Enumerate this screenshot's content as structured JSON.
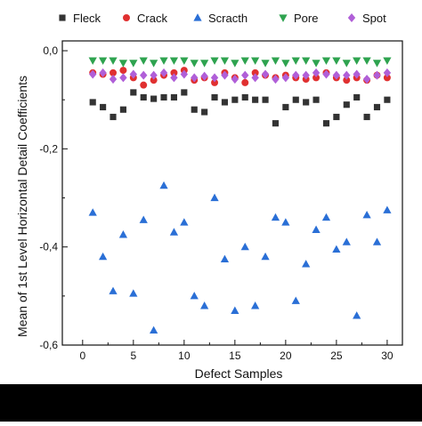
{
  "chart_data": {
    "type": "scatter",
    "xlabel": "Defect Samples",
    "ylabel": "Mean of 1st Level Horizontal Detail Coefficients",
    "xlim": [
      -2,
      31.5
    ],
    "ylim": [
      -0.6,
      0.02
    ],
    "x_ticks": [
      0,
      5,
      10,
      15,
      20,
      25,
      30
    ],
    "x_tick_labels": [
      "0",
      "5",
      "10",
      "15",
      "20",
      "25",
      "30"
    ],
    "y_ticks": [
      0.0,
      -0.2,
      -0.4,
      -0.6
    ],
    "y_tick_labels": [
      "0,0",
      "-0,2",
      "-0,4",
      "-0,6"
    ],
    "grid": false,
    "legend_placement": "top",
    "x": [
      1,
      2,
      3,
      4,
      5,
      6,
      7,
      8,
      9,
      10,
      11,
      12,
      13,
      14,
      15,
      16,
      17,
      18,
      19,
      20,
      21,
      22,
      23,
      24,
      25,
      26,
      27,
      28,
      29,
      30
    ],
    "series": [
      {
        "name": "Fleck",
        "marker": "square",
        "color": "#333333",
        "values": [
          -0.105,
          -0.115,
          -0.135,
          -0.12,
          -0.085,
          -0.095,
          -0.098,
          -0.095,
          -0.095,
          -0.085,
          -0.12,
          -0.125,
          -0.095,
          -0.105,
          -0.1,
          -0.095,
          -0.1,
          -0.1,
          -0.148,
          -0.115,
          -0.1,
          -0.105,
          -0.1,
          -0.148,
          -0.135,
          -0.11,
          -0.095,
          -0.135,
          -0.115,
          -0.1
        ]
      },
      {
        "name": "Crack",
        "marker": "circle",
        "color": "#e03030",
        "values": [
          -0.045,
          -0.048,
          -0.045,
          -0.04,
          -0.055,
          -0.07,
          -0.06,
          -0.05,
          -0.045,
          -0.04,
          -0.06,
          -0.055,
          -0.065,
          -0.045,
          -0.055,
          -0.065,
          -0.045,
          -0.05,
          -0.055,
          -0.05,
          -0.055,
          -0.058,
          -0.055,
          -0.045,
          -0.055,
          -0.06,
          -0.055,
          -0.06,
          -0.05,
          -0.055
        ]
      },
      {
        "name": "Scracth",
        "marker": "triangle-up",
        "color": "#2a6fd6",
        "values": [
          -0.33,
          -0.42,
          -0.49,
          -0.375,
          -0.495,
          -0.345,
          -0.57,
          -0.275,
          -0.37,
          -0.35,
          -0.5,
          -0.52,
          -0.3,
          -0.425,
          -0.53,
          -0.4,
          -0.52,
          -0.42,
          -0.34,
          -0.35,
          -0.51,
          -0.435,
          -0.365,
          -0.34,
          -0.405,
          -0.39,
          -0.54,
          -0.335,
          -0.39,
          -0.325
        ]
      },
      {
        "name": "Pore",
        "marker": "triangle-down",
        "color": "#2ea34f",
        "values": [
          -0.02,
          -0.02,
          -0.02,
          -0.025,
          -0.025,
          -0.02,
          -0.025,
          -0.02,
          -0.02,
          -0.02,
          -0.025,
          -0.025,
          -0.02,
          -0.02,
          -0.025,
          -0.02,
          -0.02,
          -0.025,
          -0.02,
          -0.025,
          -0.02,
          -0.02,
          -0.025,
          -0.02,
          -0.02,
          -0.025,
          -0.02,
          -0.02,
          -0.025,
          -0.02
        ]
      },
      {
        "name": "Spot",
        "marker": "diamond",
        "color": "#b05fd8",
        "values": [
          -0.048,
          -0.045,
          -0.058,
          -0.055,
          -0.048,
          -0.05,
          -0.05,
          -0.045,
          -0.055,
          -0.048,
          -0.055,
          -0.052,
          -0.055,
          -0.05,
          -0.058,
          -0.05,
          -0.055,
          -0.048,
          -0.058,
          -0.055,
          -0.05,
          -0.05,
          -0.045,
          -0.048,
          -0.05,
          -0.05,
          -0.048,
          -0.058,
          -0.05,
          -0.045
        ]
      }
    ]
  },
  "colors": {
    "background": "#ffffff",
    "axis": "#111111",
    "bottom_band": "#000000"
  }
}
